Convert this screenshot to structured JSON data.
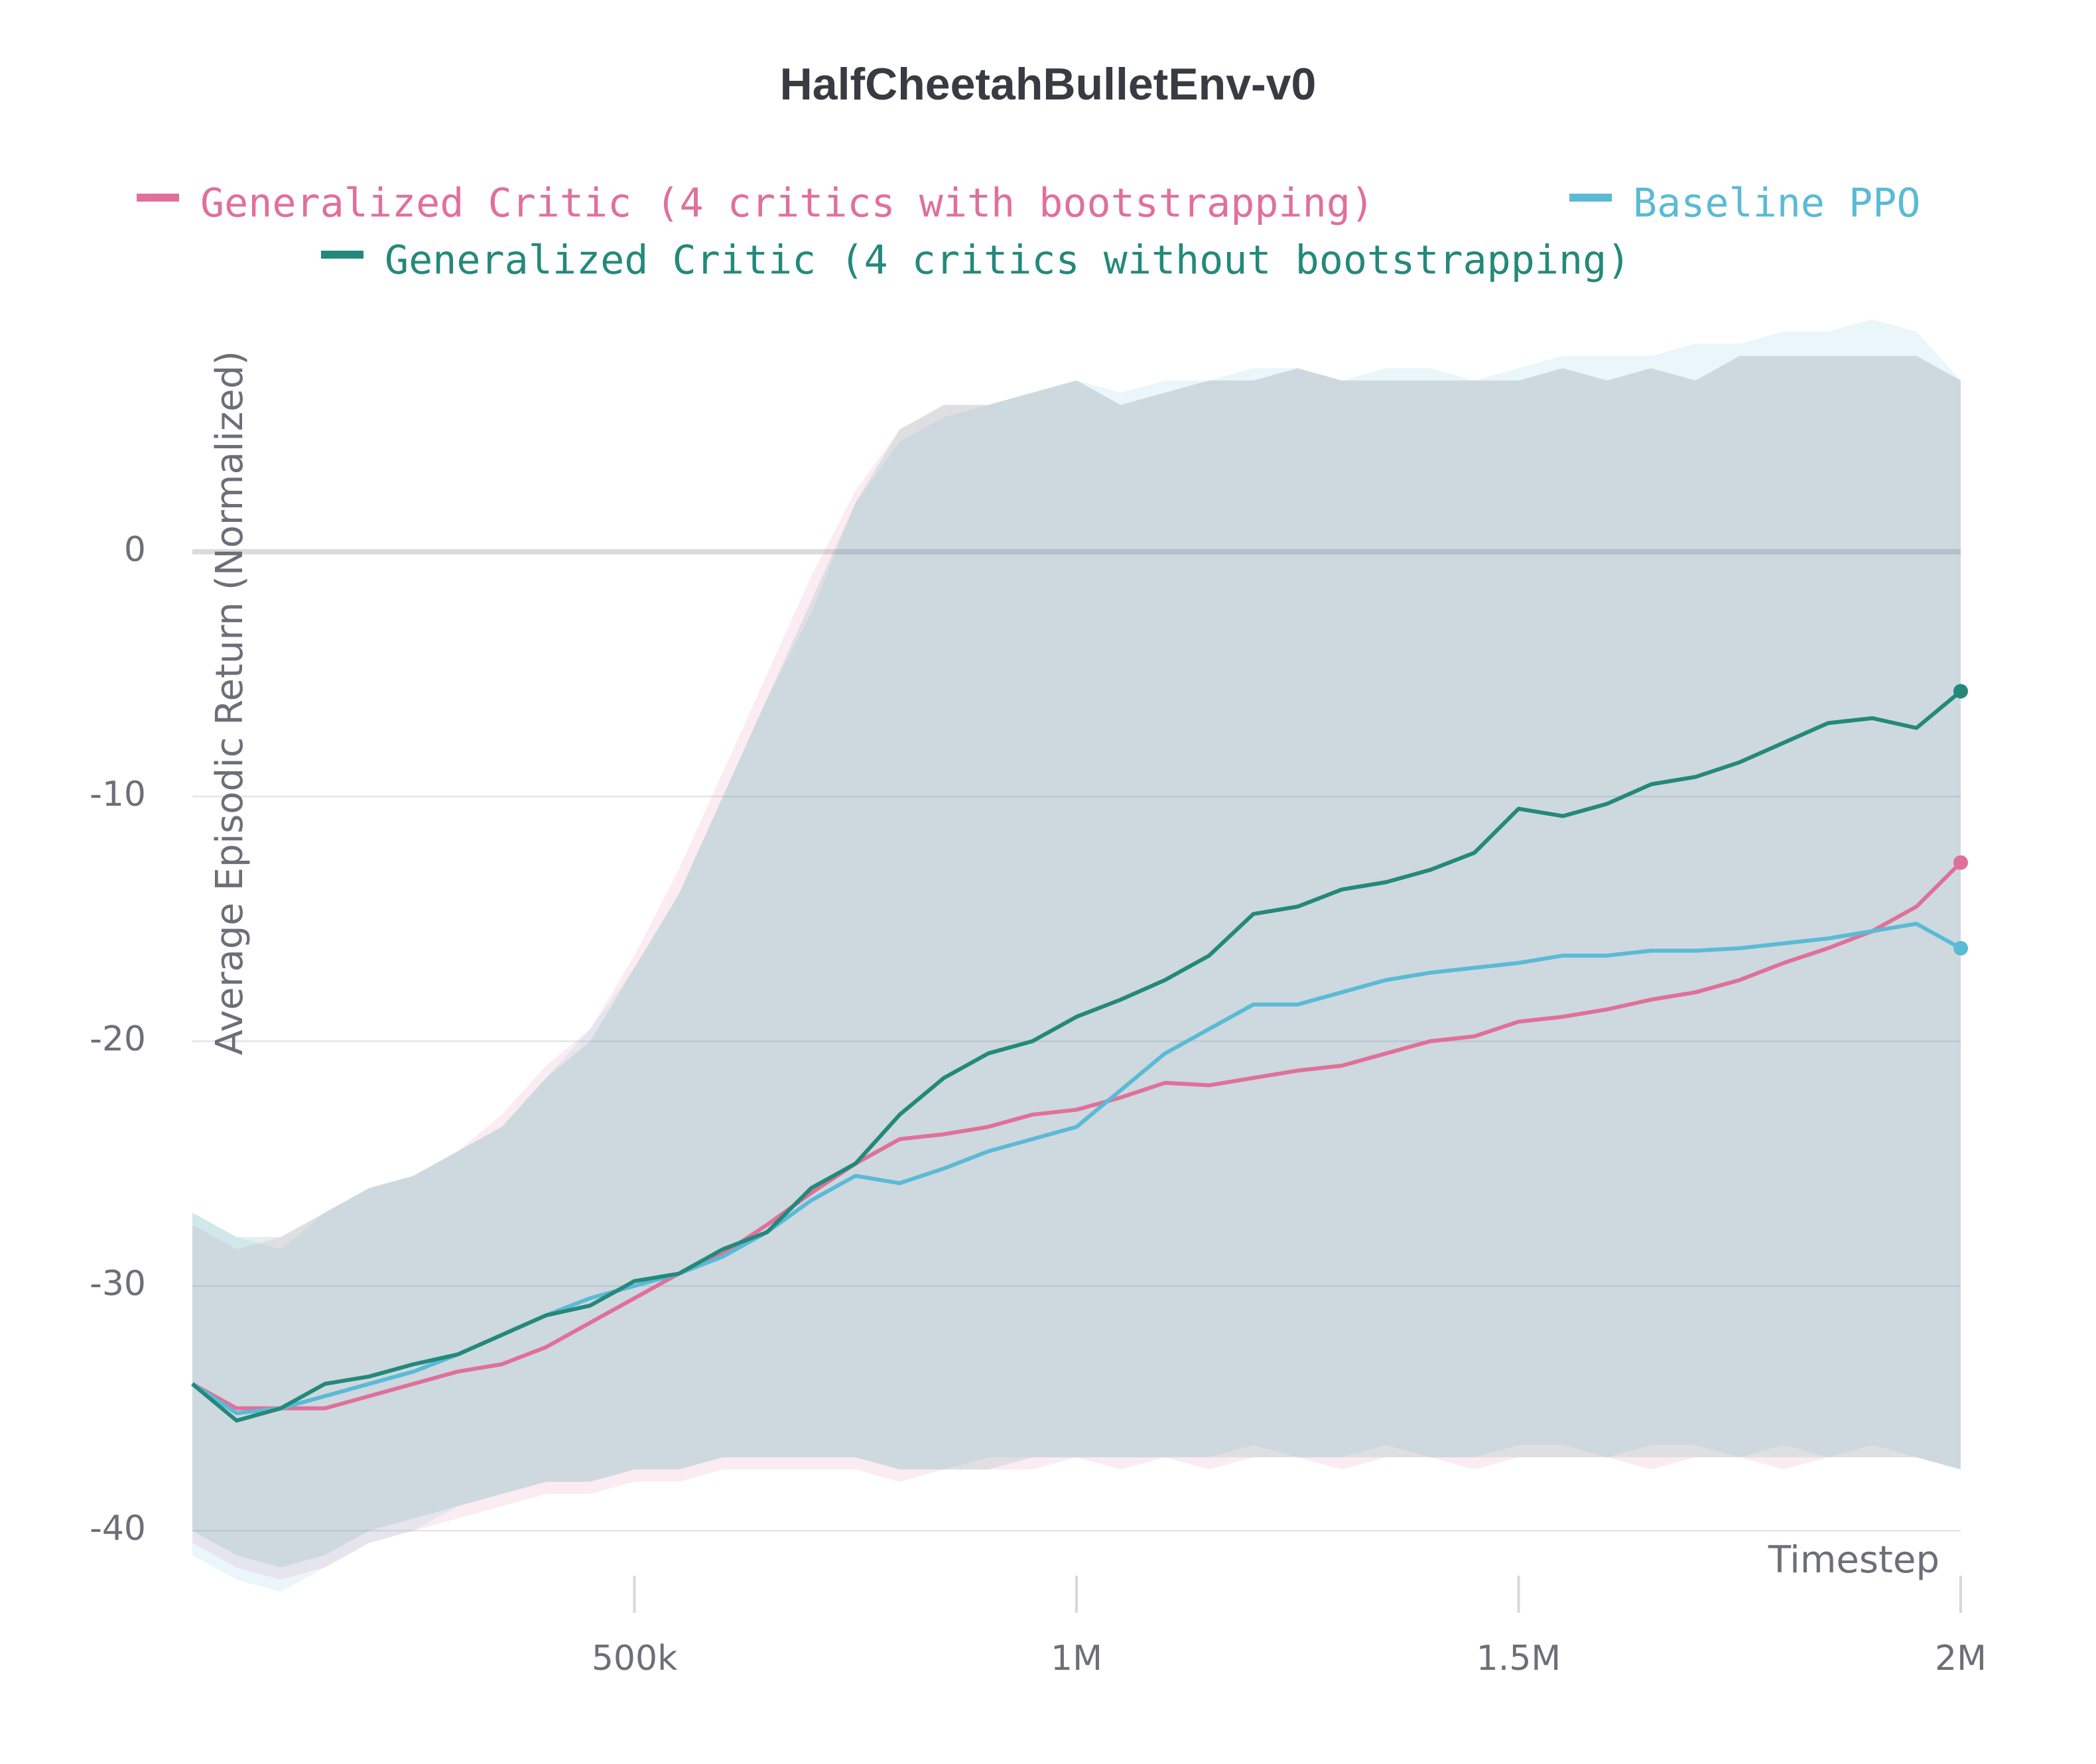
{
  "chart_data": {
    "type": "line",
    "title": "HalfCheetahBulletEnv-v0",
    "x_label": "Timestep",
    "y_label": "Average Episodic Return (Normalized)",
    "x": [
      0,
      50000,
      100000,
      150000,
      200000,
      250000,
      300000,
      350000,
      400000,
      450000,
      500000,
      550000,
      600000,
      650000,
      700000,
      750000,
      800000,
      850000,
      900000,
      950000,
      1000000,
      1050000,
      1100000,
      1150000,
      1200000,
      1250000,
      1300000,
      1350000,
      1400000,
      1450000,
      1500000,
      1550000,
      1600000,
      1650000,
      1700000,
      1750000,
      1800000,
      1850000,
      1900000,
      1950000,
      2000000
    ],
    "xlim": [
      0,
      2000000
    ],
    "xticks": [
      {
        "value": 500000,
        "label": "500k"
      },
      {
        "value": 1000000,
        "label": "1M"
      },
      {
        "value": 1500000,
        "label": "1.5M"
      },
      {
        "value": 2000000,
        "label": "2M"
      }
    ],
    "ylim": [
      -42,
      10
    ],
    "yticks": [
      -40,
      -30,
      -20,
      -10,
      0
    ],
    "grid": true,
    "series": [
      {
        "name": "Generalized Critic (4 critics with bootstrapping)",
        "color": "#e0709a",
        "values": [
          -34,
          -35,
          -35,
          -35,
          -34.5,
          -34,
          -33.5,
          -33.2,
          -32.5,
          -31.5,
          -30.5,
          -29.5,
          -28.7,
          -27.5,
          -26.2,
          -25,
          -24,
          -23.8,
          -23.5,
          -23,
          -22.8,
          -22.3,
          -21.7,
          -21.8,
          -21.5,
          -21.2,
          -21,
          -20.5,
          -20,
          -19.8,
          -19.2,
          -19,
          -18.7,
          -18.3,
          -18,
          -17.5,
          -16.8,
          -16.2,
          -15.5,
          -14.5,
          -12.7
        ],
        "lower": [
          -40.5,
          -41.5,
          -42,
          -41.5,
          -40.5,
          -40,
          -39.5,
          -39,
          -38.5,
          -38.5,
          -38,
          -38,
          -37.5,
          -37.5,
          -37.5,
          -37.5,
          -38,
          -37.5,
          -37.5,
          -37.5,
          -37,
          -37.5,
          -37,
          -37.5,
          -37,
          -37,
          -37.5,
          -37,
          -37,
          -37.5,
          -37,
          -37,
          -37,
          -37.5,
          -37,
          -37,
          -37.5,
          -37,
          -37,
          -37,
          -37.5
        ],
        "upper": [
          -27.5,
          -28.5,
          -28,
          -27,
          -26,
          -25.5,
          -24.5,
          -23,
          -21,
          -19.5,
          -16.5,
          -13,
          -9,
          -5,
          -1,
          2.5,
          5,
          6,
          6,
          6.5,
          7,
          6,
          6.5,
          7,
          7,
          7.5,
          7,
          7,
          7,
          7,
          7,
          7.5,
          7,
          7.5,
          7,
          8,
          8,
          8,
          8,
          8,
          7
        ]
      },
      {
        "name": "Baseline PPO",
        "color": "#5bbad5",
        "values": [
          -34,
          -35.2,
          -35,
          -34.5,
          -34,
          -33.5,
          -32.8,
          -32,
          -31.2,
          -30.5,
          -30,
          -29.5,
          -28.8,
          -27.8,
          -26.5,
          -25.5,
          -25.8,
          -25.2,
          -24.5,
          -24,
          -23.5,
          -22,
          -20.5,
          -19.5,
          -18.5,
          -18.5,
          -18,
          -17.5,
          -17.2,
          -17,
          -16.8,
          -16.5,
          -16.5,
          -16.3,
          -16.3,
          -16.2,
          -16,
          -15.8,
          -15.5,
          -15.2,
          -16.2
        ],
        "lower": [
          -41,
          -42,
          -42.5,
          -41.5,
          -40.5,
          -40,
          -39,
          -38.5,
          -38,
          -38,
          -37.5,
          -37.5,
          -37,
          -37,
          -37,
          -37,
          -37.5,
          -37.5,
          -37,
          -37,
          -37,
          -37,
          -37,
          -37,
          -36.5,
          -37,
          -37,
          -36.5,
          -37,
          -37,
          -36.5,
          -36.5,
          -37,
          -36.5,
          -36.5,
          -37,
          -36.5,
          -37,
          -36.5,
          -37,
          -37.5
        ],
        "upper": [
          -27,
          -28,
          -28.5,
          -27,
          -26,
          -25.5,
          -24.5,
          -23.5,
          -21.5,
          -19.5,
          -17,
          -14,
          -10,
          -6,
          -2.5,
          2,
          4.5,
          5.5,
          6,
          6.5,
          7,
          6.5,
          7,
          7,
          7.5,
          7.5,
          7,
          7.5,
          7.5,
          7,
          7.5,
          8,
          8,
          8,
          8.5,
          8.5,
          9,
          9,
          9.5,
          9,
          7
        ]
      },
      {
        "name": "Generalized Critic (4 critics without bootstrapping)",
        "color": "#24897a",
        "values": [
          -34,
          -35.5,
          -35,
          -34,
          -33.7,
          -33.2,
          -32.8,
          -32,
          -31.2,
          -30.8,
          -29.8,
          -29.5,
          -28.5,
          -27.8,
          -26,
          -25,
          -23,
          -21.5,
          -20.5,
          -20,
          -19,
          -18.3,
          -17.5,
          -16.5,
          -14.8,
          -14.5,
          -13.8,
          -13.5,
          -13,
          -12.3,
          -10.5,
          -10.8,
          -10.3,
          -9.5,
          -9.2,
          -8.6,
          -7.8,
          -7,
          -6.8,
          -7.2,
          -5.7
        ],
        "lower": [
          -40,
          -41,
          -41.5,
          -41,
          -40,
          -39.5,
          -39,
          -38.5,
          -38,
          -38,
          -37.5,
          -37.5,
          -37,
          -37,
          -37,
          -37,
          -37.5,
          -37.5,
          -37.5,
          -37,
          -37,
          -37,
          -37,
          -37,
          -37,
          -37,
          -37,
          -37,
          -37,
          -37,
          -37,
          -37,
          -37,
          -37,
          -37,
          -37,
          -37,
          -37,
          -37,
          -37,
          -37.5
        ],
        "upper": [
          -27,
          -28,
          -28,
          -27,
          -26,
          -25.5,
          -24.5,
          -23.5,
          -21.5,
          -20,
          -17,
          -14,
          -10,
          -6,
          -2,
          2,
          5,
          6,
          6,
          6.5,
          7,
          6,
          6.5,
          7,
          7,
          7.5,
          7,
          7,
          7,
          7,
          7,
          7.5,
          7,
          7.5,
          7,
          8,
          8,
          8,
          8,
          8,
          7
        ]
      }
    ]
  }
}
